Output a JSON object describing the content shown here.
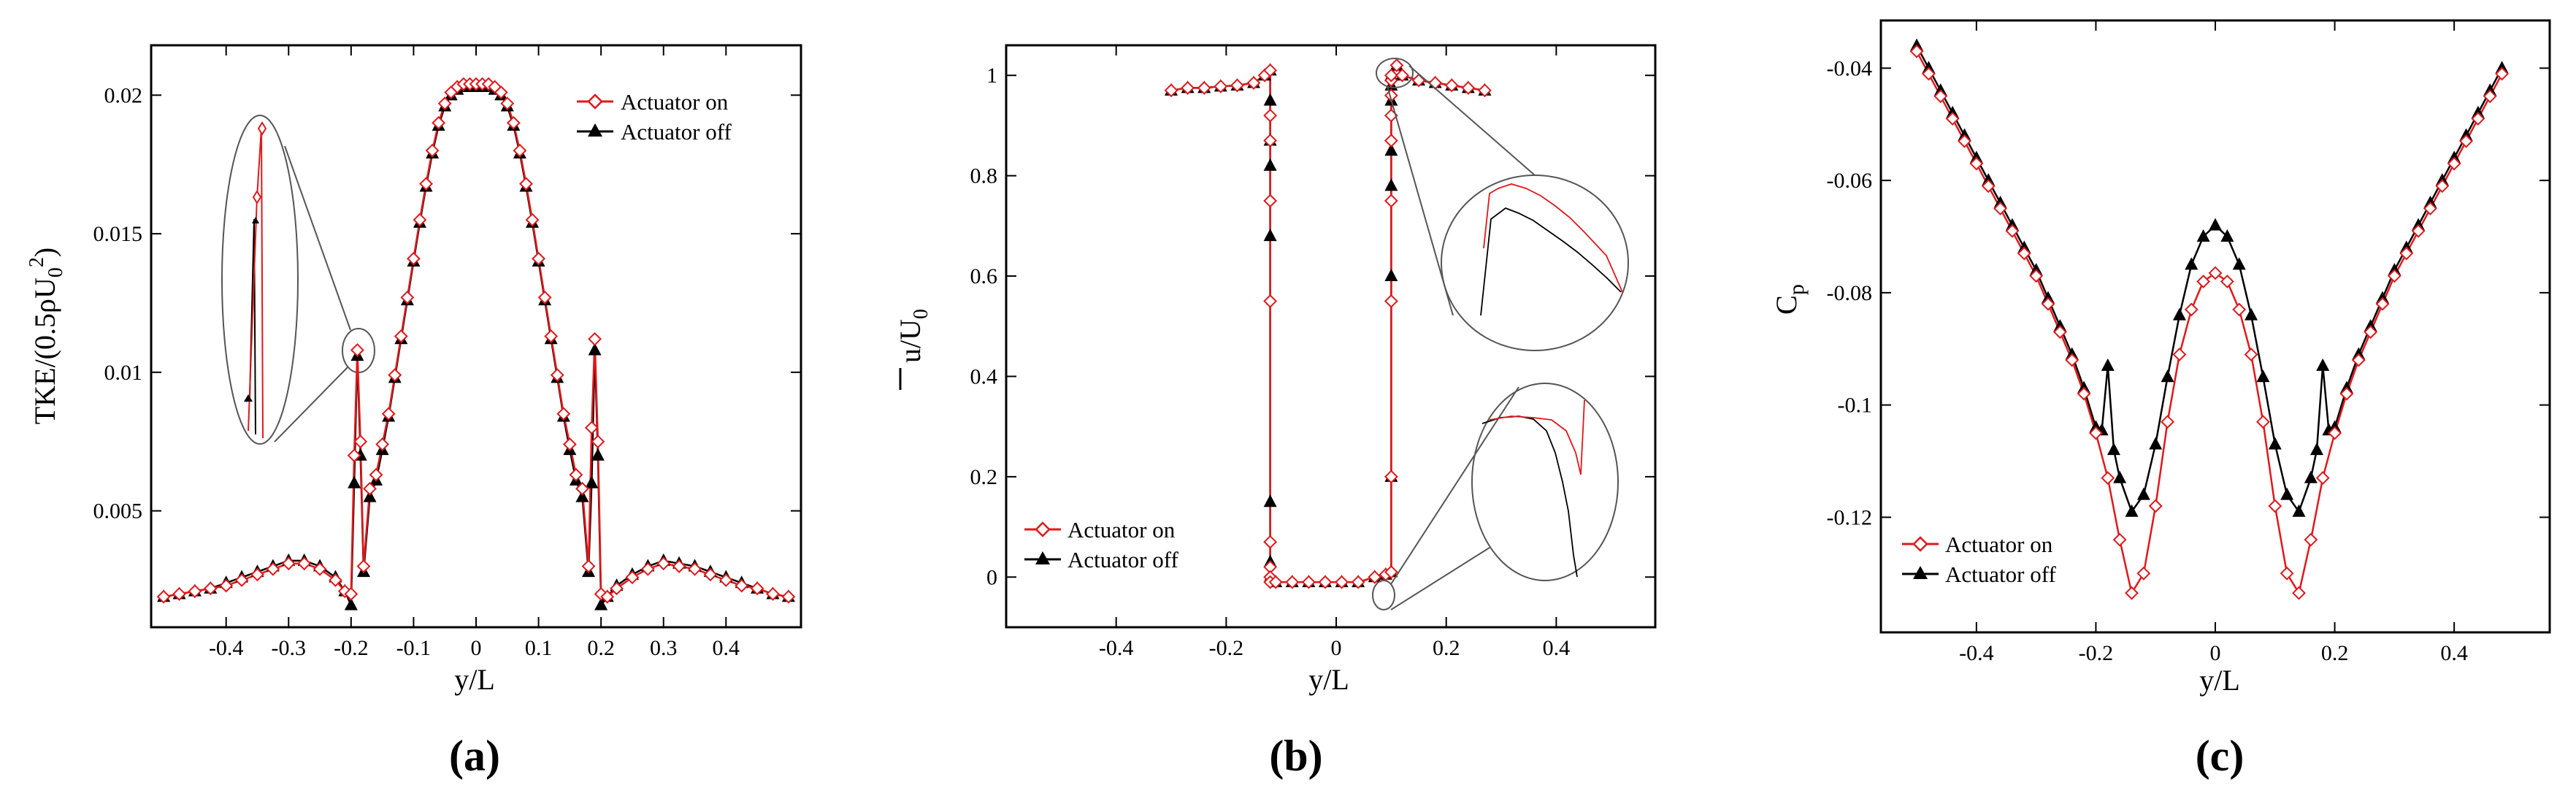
{
  "figure": {
    "panel_labels": [
      "(a)",
      "(b)",
      "(c)"
    ],
    "colors": {
      "on": "#e0181b",
      "off": "#000000",
      "axis": "#000000"
    }
  },
  "chart_data": [
    {
      "type": "line",
      "title": "",
      "xlabel": "y/L",
      "ylabel": "TKE/(0.5ρU0²)",
      "ylabel_parts": {
        "main": "TKE/(0.5ρU",
        "sub": "0",
        "sup": "2",
        "close": ")"
      },
      "xlim": [
        -0.52,
        0.52
      ],
      "ylim": [
        0.0008,
        0.0218
      ],
      "xticks": [
        -0.4,
        -0.3,
        -0.2,
        -0.1,
        0,
        0.1,
        0.2,
        0.3,
        0.4
      ],
      "xtick_labels": [
        "-0.4",
        "-0.3",
        "-0.2",
        "-0.1",
        "0",
        "0.1",
        "0.2",
        "0.3",
        "0.4"
      ],
      "yticks": [
        0.005,
        0.01,
        0.015,
        0.02
      ],
      "ytick_labels": [
        "0.005",
        "0.01",
        "0.015",
        "0.02"
      ],
      "legend_position": "top-right",
      "inset": "magnified view of peak near y/L = -0.2",
      "series": [
        {
          "name": "Actuator on",
          "marker": "diamond",
          "x": [
            -0.5,
            -0.475,
            -0.45,
            -0.425,
            -0.4,
            -0.375,
            -0.35,
            -0.325,
            -0.3,
            -0.275,
            -0.25,
            -0.225,
            -0.21,
            -0.2,
            -0.195,
            -0.19,
            -0.185,
            -0.18,
            -0.17,
            -0.16,
            -0.15,
            -0.14,
            -0.13,
            -0.12,
            -0.11,
            -0.1,
            -0.09,
            -0.08,
            -0.07,
            -0.06,
            -0.05,
            -0.04,
            -0.03,
            -0.02,
            -0.01,
            0,
            0.01,
            0.02,
            0.03,
            0.04,
            0.05,
            0.06,
            0.07,
            0.08,
            0.09,
            0.1,
            0.11,
            0.12,
            0.13,
            0.14,
            0.15,
            0.16,
            0.17,
            0.18,
            0.185,
            0.19,
            0.195,
            0.2,
            0.21,
            0.225,
            0.25,
            0.275,
            0.3,
            0.325,
            0.35,
            0.375,
            0.4,
            0.425,
            0.45,
            0.475,
            0.5
          ],
          "y": [
            0.0019,
            0.002,
            0.0021,
            0.0022,
            0.0023,
            0.0025,
            0.0027,
            0.0029,
            0.0031,
            0.0031,
            0.0029,
            0.0025,
            0.0021,
            0.002,
            0.007,
            0.0108,
            0.0075,
            0.003,
            0.0058,
            0.0063,
            0.0074,
            0.0085,
            0.0099,
            0.0113,
            0.0127,
            0.0141,
            0.0155,
            0.0168,
            0.018,
            0.019,
            0.0197,
            0.0201,
            0.0203,
            0.0204,
            0.0204,
            0.0204,
            0.0204,
            0.0204,
            0.0203,
            0.0201,
            0.0197,
            0.019,
            0.018,
            0.0168,
            0.0155,
            0.0141,
            0.0127,
            0.0113,
            0.0099,
            0.0085,
            0.0074,
            0.0063,
            0.0058,
            0.003,
            0.008,
            0.0112,
            0.0075,
            0.002,
            0.0019,
            0.0022,
            0.0026,
            0.0029,
            0.0031,
            0.003,
            0.0029,
            0.0027,
            0.0025,
            0.0023,
            0.0022,
            0.002,
            0.0019
          ]
        },
        {
          "name": "Actuator off",
          "marker": "triangle",
          "x": [
            -0.5,
            -0.475,
            -0.45,
            -0.425,
            -0.4,
            -0.375,
            -0.35,
            -0.325,
            -0.3,
            -0.275,
            -0.25,
            -0.225,
            -0.21,
            -0.2,
            -0.195,
            -0.19,
            -0.185,
            -0.18,
            -0.17,
            -0.16,
            -0.15,
            -0.14,
            -0.13,
            -0.12,
            -0.11,
            -0.1,
            -0.09,
            -0.08,
            -0.07,
            -0.06,
            -0.05,
            -0.04,
            -0.03,
            -0.02,
            -0.01,
            0,
            0.01,
            0.02,
            0.03,
            0.04,
            0.05,
            0.06,
            0.07,
            0.08,
            0.09,
            0.1,
            0.11,
            0.12,
            0.13,
            0.14,
            0.15,
            0.16,
            0.17,
            0.18,
            0.185,
            0.19,
            0.195,
            0.2,
            0.21,
            0.225,
            0.25,
            0.275,
            0.3,
            0.325,
            0.35,
            0.375,
            0.4,
            0.425,
            0.45,
            0.475,
            0.5
          ],
          "y": [
            0.0019,
            0.002,
            0.0021,
            0.0022,
            0.0024,
            0.0026,
            0.0028,
            0.003,
            0.0032,
            0.0032,
            0.003,
            0.0026,
            0.0021,
            0.0016,
            0.006,
            0.0106,
            0.007,
            0.0028,
            0.0055,
            0.0061,
            0.0072,
            0.0084,
            0.0098,
            0.0112,
            0.0126,
            0.014,
            0.0154,
            0.0167,
            0.0179,
            0.0189,
            0.0196,
            0.02,
            0.0202,
            0.0203,
            0.0203,
            0.0203,
            0.0203,
            0.0203,
            0.0202,
            0.02,
            0.0196,
            0.0189,
            0.0179,
            0.0167,
            0.0154,
            0.014,
            0.0126,
            0.0112,
            0.0098,
            0.0084,
            0.0072,
            0.0061,
            0.0055,
            0.0028,
            0.006,
            0.0108,
            0.007,
            0.0016,
            0.0019,
            0.0023,
            0.0027,
            0.003,
            0.0032,
            0.0031,
            0.003,
            0.0028,
            0.0026,
            0.0024,
            0.0022,
            0.002,
            0.0019
          ]
        }
      ]
    },
    {
      "type": "line",
      "title": "",
      "xlabel": "y/L",
      "ylabel": "u̅/U0",
      "ylabel_parts": {
        "main": "u/U",
        "sub": "0"
      },
      "xlim": [
        -0.6,
        0.58
      ],
      "ylim": [
        -0.1,
        1.06
      ],
      "xticks": [
        -0.4,
        -0.2,
        0,
        0.2,
        0.4
      ],
      "xtick_labels": [
        "-0.4",
        "-0.2",
        "0",
        "0.2",
        "0.4"
      ],
      "yticks": [
        0,
        0.2,
        0.4,
        0.6,
        0.8,
        1
      ],
      "ytick_labels": [
        "0",
        "0.2",
        "0.4",
        "0.6",
        "0.8",
        "1"
      ],
      "legend_position": "bottom-left",
      "inset": "magnified views near y/L = 0.1 at u/U0 ≈ 1 and u/U0 ≈ 0",
      "series": [
        {
          "name": "Actuator on",
          "marker": "diamond",
          "x": [
            -0.3,
            -0.27,
            -0.24,
            -0.21,
            -0.18,
            -0.15,
            -0.13,
            -0.12,
            -0.12,
            -0.12,
            -0.12,
            -0.12,
            -0.12,
            -0.12,
            -0.12,
            -0.12,
            -0.11,
            -0.08,
            -0.05,
            -0.02,
            0.01,
            0.04,
            0.07,
            0.09,
            0.1,
            0.1,
            0.1,
            0.1,
            0.1,
            0.1,
            0.1,
            0.1,
            0.1,
            0.11,
            0.12,
            0.15,
            0.18,
            0.21,
            0.24,
            0.27
          ],
          "y": [
            0.97,
            0.975,
            0.975,
            0.978,
            0.98,
            0.985,
            1.0,
            1.01,
            0.92,
            0.87,
            0.75,
            0.55,
            0.07,
            0.02,
            0.0,
            -0.01,
            -0.01,
            -0.01,
            -0.01,
            -0.01,
            -0.01,
            -0.01,
            0.0,
            0.005,
            0.01,
            0.2,
            0.55,
            0.75,
            0.87,
            0.92,
            0.96,
            0.99,
            1.0,
            1.02,
            1.0,
            0.99,
            0.985,
            0.98,
            0.975,
            0.97
          ]
        },
        {
          "name": "Actuator off",
          "marker": "triangle",
          "x": [
            -0.3,
            -0.27,
            -0.24,
            -0.21,
            -0.18,
            -0.15,
            -0.13,
            -0.12,
            -0.12,
            -0.12,
            -0.12,
            -0.12,
            -0.12,
            -0.12,
            -0.12,
            -0.11,
            -0.08,
            -0.05,
            -0.02,
            0.01,
            0.04,
            0.07,
            0.09,
            0.1,
            0.1,
            0.1,
            0.1,
            0.1,
            0.1,
            0.1,
            0.1,
            0.11,
            0.12,
            0.15,
            0.18,
            0.21,
            0.24,
            0.27
          ],
          "y": [
            0.97,
            0.975,
            0.975,
            0.978,
            0.98,
            0.985,
            1.0,
            1.01,
            0.95,
            0.87,
            0.82,
            0.68,
            0.15,
            0.03,
            0.0,
            -0.01,
            -0.01,
            -0.01,
            -0.01,
            -0.01,
            -0.01,
            0.0,
            0.005,
            0.01,
            0.2,
            0.6,
            0.78,
            0.85,
            0.95,
            0.98,
            1.0,
            1.02,
            1.0,
            0.99,
            0.985,
            0.98,
            0.975,
            0.97
          ]
        }
      ]
    },
    {
      "type": "line",
      "title": "",
      "xlabel": "y/L",
      "ylabel": "Cp",
      "ylabel_parts": {
        "main": "C",
        "sub": "p"
      },
      "xlim": [
        -0.56,
        0.56
      ],
      "ylim": [
        -0.1405,
        -0.0315
      ],
      "xticks": [
        -0.4,
        -0.2,
        0,
        0.2,
        0.4
      ],
      "xtick_labels": [
        "-0.4",
        "-0.2",
        "0",
        "0.2",
        "0.4"
      ],
      "yticks": [
        -0.12,
        -0.1,
        -0.08,
        -0.06,
        -0.04
      ],
      "ytick_labels": [
        "-0.12",
        "-0.1",
        "-0.08",
        "-0.06",
        "-0.04"
      ],
      "legend_position": "bottom-left",
      "series": [
        {
          "name": "Actuator on",
          "marker": "diamond",
          "x": [
            -0.5,
            -0.48,
            -0.46,
            -0.44,
            -0.42,
            -0.4,
            -0.38,
            -0.36,
            -0.34,
            -0.32,
            -0.3,
            -0.28,
            -0.26,
            -0.24,
            -0.22,
            -0.2,
            -0.18,
            -0.16,
            -0.14,
            -0.12,
            -0.1,
            -0.08,
            -0.06,
            -0.04,
            -0.02,
            0,
            0.02,
            0.04,
            0.06,
            0.08,
            0.1,
            0.12,
            0.14,
            0.16,
            0.18,
            0.2,
            0.22,
            0.24,
            0.26,
            0.28,
            0.3,
            0.32,
            0.34,
            0.36,
            0.38,
            0.4,
            0.42,
            0.44,
            0.46,
            0.48
          ],
          "y": [
            -0.037,
            -0.041,
            -0.045,
            -0.049,
            -0.053,
            -0.057,
            -0.061,
            -0.065,
            -0.069,
            -0.073,
            -0.077,
            -0.082,
            -0.087,
            -0.092,
            -0.098,
            -0.105,
            -0.113,
            -0.124,
            -0.1335,
            -0.13,
            -0.118,
            -0.103,
            -0.091,
            -0.083,
            -0.078,
            -0.0765,
            -0.078,
            -0.083,
            -0.091,
            -0.103,
            -0.118,
            -0.13,
            -0.1335,
            -0.124,
            -0.113,
            -0.105,
            -0.098,
            -0.092,
            -0.087,
            -0.082,
            -0.077,
            -0.073,
            -0.069,
            -0.065,
            -0.061,
            -0.057,
            -0.053,
            -0.049,
            -0.045,
            -0.041
          ]
        },
        {
          "name": "Actuator off",
          "marker": "triangle",
          "x": [
            -0.5,
            -0.48,
            -0.46,
            -0.44,
            -0.42,
            -0.4,
            -0.38,
            -0.36,
            -0.34,
            -0.32,
            -0.3,
            -0.28,
            -0.26,
            -0.24,
            -0.22,
            -0.2,
            -0.19,
            -0.18,
            -0.17,
            -0.16,
            -0.14,
            -0.12,
            -0.1,
            -0.08,
            -0.06,
            -0.04,
            -0.02,
            0,
            0.02,
            0.04,
            0.06,
            0.08,
            0.1,
            0.12,
            0.14,
            0.16,
            0.17,
            0.18,
            0.19,
            0.2,
            0.22,
            0.24,
            0.26,
            0.28,
            0.3,
            0.32,
            0.34,
            0.36,
            0.38,
            0.4,
            0.42,
            0.44,
            0.46,
            0.48
          ],
          "y": [
            -0.036,
            -0.04,
            -0.044,
            -0.048,
            -0.052,
            -0.056,
            -0.06,
            -0.064,
            -0.068,
            -0.072,
            -0.076,
            -0.081,
            -0.086,
            -0.091,
            -0.097,
            -0.104,
            -0.1045,
            -0.093,
            -0.108,
            -0.113,
            -0.119,
            -0.116,
            -0.107,
            -0.095,
            -0.084,
            -0.075,
            -0.07,
            -0.068,
            -0.07,
            -0.075,
            -0.084,
            -0.095,
            -0.107,
            -0.116,
            -0.119,
            -0.113,
            -0.108,
            -0.093,
            -0.1045,
            -0.104,
            -0.097,
            -0.091,
            -0.086,
            -0.081,
            -0.076,
            -0.072,
            -0.068,
            -0.064,
            -0.06,
            -0.056,
            -0.052,
            -0.048,
            -0.044,
            -0.04
          ]
        }
      ]
    }
  ]
}
